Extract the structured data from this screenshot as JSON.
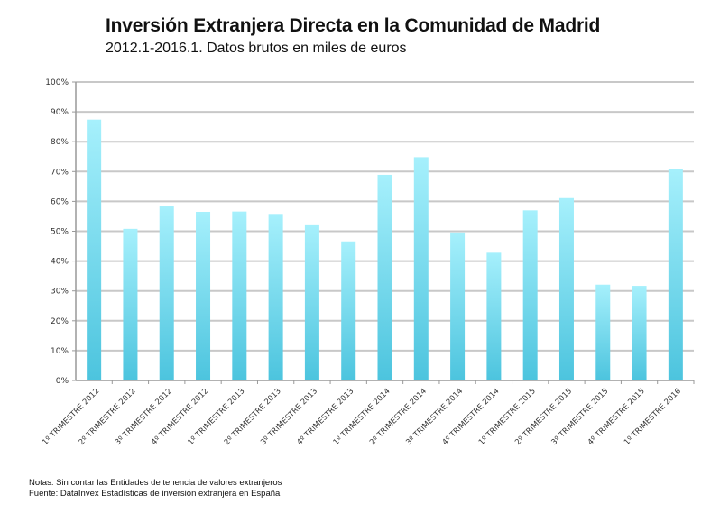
{
  "header": {
    "title": "Inversión Extranjera Directa en la Comunidad de Madrid",
    "subtitle": "2012.1-2016.1. Datos brutos en miles de euros"
  },
  "footer": {
    "notes": "Notas: Sin contar las Entidades de tenencia de valores extranjeros",
    "source": "Fuente: DataInvex Estadísticas de inversión extranjera en España"
  },
  "colors": {
    "bar_top": "#a6f0fc",
    "bar_bottom": "#4cc4de",
    "grid": "#c8c8c8",
    "axis": "#999999"
  },
  "chart_data": {
    "type": "bar",
    "title": "Inversión Extranjera Directa en la Comunidad de Madrid",
    "subtitle": "2012.1-2016.1. Datos brutos en miles de euros",
    "xlabel": "",
    "ylabel": "",
    "ylim": [
      0,
      100
    ],
    "yticks": [
      "0%",
      "10%",
      "20%",
      "30%",
      "40%",
      "50%",
      "60%",
      "70%",
      "80%",
      "90%",
      "100%"
    ],
    "grid": true,
    "legend": "none",
    "categories": [
      "1º TRIMESTRE 2012",
      "2º TRIMESTRE 2012",
      "3º TRIMESTRE 2012",
      "4º TRIMESTRE 2012",
      "1º TRIMESTRE 2013",
      "2º TRIMESTRE 2013",
      "3º TRIMESTRE 2013",
      "4º TRIMESTRE 2013",
      "1º TRIMESTRE 2014",
      "2º TRIMESTRE 2014",
      "3º TRIMESTRE 2014",
      "4º TRIMESTRE 2014",
      "1º TRIMESTRE 2015",
      "2º TRIMESTRE 2015",
      "3º TRIMESTRE 2015",
      "4º TRIMESTRE 2015",
      "1º TRIMESTRE 2016"
    ],
    "values": [
      87.4,
      50.8,
      58.3,
      56.5,
      56.6,
      55.8,
      52.0,
      46.6,
      68.9,
      74.8,
      49.6,
      42.8,
      57.0,
      61.1,
      32.1,
      31.7,
      70.8
    ],
    "unit": "%"
  }
}
